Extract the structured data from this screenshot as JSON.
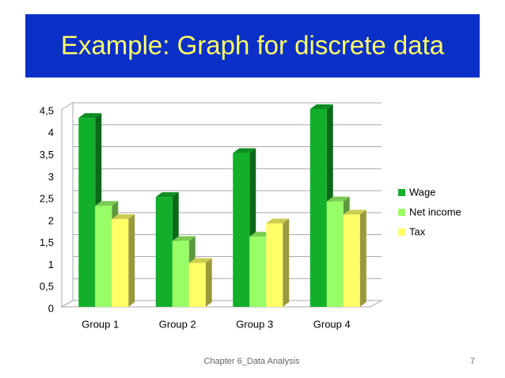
{
  "slide": {
    "title": "Example: Graph for discrete data",
    "footer": "Chapter 6_Data Analysis",
    "page_number": "7"
  },
  "chart_data": {
    "type": "bar3d",
    "categories": [
      "Group 1",
      "Group 2",
      "Group 3",
      "Group 4"
    ],
    "series": [
      {
        "name": "Wage",
        "color": "#12b02a",
        "values": [
          4.3,
          2.5,
          3.5,
          4.5
        ]
      },
      {
        "name": "Net income",
        "color": "#99ff66",
        "values": [
          2.3,
          1.5,
          1.6,
          2.4
        ]
      },
      {
        "name": "Tax",
        "color": "#ffff66",
        "values": [
          2.0,
          1.0,
          1.9,
          2.1
        ]
      }
    ],
    "ylim": [
      0,
      4.5
    ],
    "yticks": [
      0,
      {
        "value": 0.5,
        "label": "0,5"
      },
      1,
      {
        "value": 1.5,
        "label": "1,5"
      },
      2,
      {
        "value": 2.5,
        "label": "2,5"
      },
      3,
      {
        "value": 3.5,
        "label": "3,5"
      },
      4,
      {
        "value": 4.5,
        "label": "4,5"
      }
    ],
    "grid": true,
    "legend": "right"
  }
}
